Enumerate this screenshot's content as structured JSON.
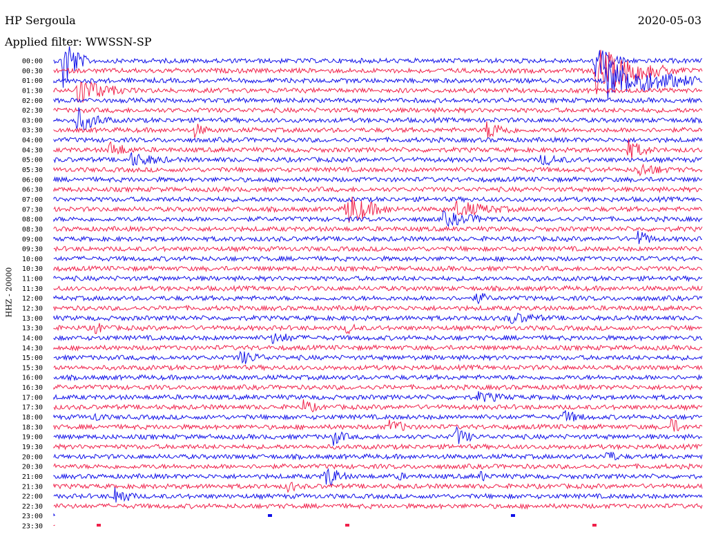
{
  "header": {
    "station": "HP Sergoula",
    "date": "2020-05-03",
    "filter": "Applied filter: WWSSN-SP"
  },
  "chart_data": {
    "type": "line",
    "title": "HP Sergoula",
    "date": "2020-05-03",
    "ylabel": "HHZ - 20000",
    "colors": {
      "even": "#1010e8",
      "odd": "#f0204a"
    },
    "rows": [
      "00:00",
      "00:30",
      "01:00",
      "01:30",
      "02:00",
      "02:30",
      "03:00",
      "03:30",
      "04:00",
      "04:30",
      "05:00",
      "05:30",
      "06:00",
      "06:30",
      "07:00",
      "07:30",
      "08:00",
      "08:30",
      "09:00",
      "09:30",
      "10:00",
      "10:30",
      "11:00",
      "11:30",
      "12:00",
      "12:30",
      "13:00",
      "13:30",
      "14:00",
      "14:30",
      "15:00",
      "15:30",
      "16:00",
      "16:30",
      "17:00",
      "17:30",
      "18:00",
      "18:30",
      "19:00",
      "19:30",
      "20:00",
      "20:30",
      "21:00",
      "21:30",
      "22:00",
      "22:30",
      "23:00",
      "23:30"
    ],
    "events": [
      {
        "row": 0,
        "x_minute": 0.4,
        "amp": 60,
        "dur": 1.5
      },
      {
        "row": 0,
        "x_minute": 25.0,
        "amp": 28,
        "dur": 2.5
      },
      {
        "row": 1,
        "x_minute": 25.0,
        "amp": 38,
        "dur": 6.0
      },
      {
        "row": 2,
        "x_minute": 25.5,
        "amp": 32,
        "dur": 8.0
      },
      {
        "row": 3,
        "x_minute": 1.0,
        "amp": 25,
        "dur": 4.0
      },
      {
        "row": 6,
        "x_minute": 1.0,
        "amp": 22,
        "dur": 3.0
      },
      {
        "row": 7,
        "x_minute": 6.5,
        "amp": 12,
        "dur": 2.0
      },
      {
        "row": 7,
        "x_minute": 20.0,
        "amp": 16,
        "dur": 3.0
      },
      {
        "row": 9,
        "x_minute": 2.5,
        "amp": 14,
        "dur": 3.0
      },
      {
        "row": 9,
        "x_minute": 26.5,
        "amp": 18,
        "dur": 2.5
      },
      {
        "row": 10,
        "x_minute": 3.5,
        "amp": 12,
        "dur": 5.0
      },
      {
        "row": 10,
        "x_minute": 22.5,
        "amp": 10,
        "dur": 4.0
      },
      {
        "row": 11,
        "x_minute": 27.0,
        "amp": 12,
        "dur": 4.0
      },
      {
        "row": 15,
        "x_minute": 13.5,
        "amp": 28,
        "dur": 3.5
      },
      {
        "row": 15,
        "x_minute": 18.5,
        "amp": 14,
        "dur": 6.0
      },
      {
        "row": 16,
        "x_minute": 18.0,
        "amp": 12,
        "dur": 6.0
      },
      {
        "row": 18,
        "x_minute": 27.0,
        "amp": 14,
        "dur": 2.0
      },
      {
        "row": 24,
        "x_minute": 19.5,
        "amp": 12,
        "dur": 2.0
      },
      {
        "row": 26,
        "x_minute": 21.0,
        "amp": 10,
        "dur": 6.0
      },
      {
        "row": 27,
        "x_minute": 1.8,
        "amp": 12,
        "dur": 2.0
      },
      {
        "row": 27,
        "x_minute": 13.5,
        "amp": 10,
        "dur": 2.0
      },
      {
        "row": 28,
        "x_minute": 10.0,
        "amp": 10,
        "dur": 4.5
      },
      {
        "row": 30,
        "x_minute": 8.5,
        "amp": 12,
        "dur": 4.0
      },
      {
        "row": 34,
        "x_minute": 19.5,
        "amp": 10,
        "dur": 5.0
      },
      {
        "row": 35,
        "x_minute": 11.5,
        "amp": 14,
        "dur": 2.0
      },
      {
        "row": 36,
        "x_minute": 1.8,
        "amp": 10,
        "dur": 2.0
      },
      {
        "row": 36,
        "x_minute": 23.5,
        "amp": 12,
        "dur": 3.0
      },
      {
        "row": 37,
        "x_minute": 15.5,
        "amp": 12,
        "dur": 3.0
      },
      {
        "row": 37,
        "x_minute": 28.5,
        "amp": 16,
        "dur": 1.5
      },
      {
        "row": 38,
        "x_minute": 18.5,
        "amp": 18,
        "dur": 2.0
      },
      {
        "row": 38,
        "x_minute": 12.8,
        "amp": 16,
        "dur": 2.0
      },
      {
        "row": 40,
        "x_minute": 25.5,
        "amp": 12,
        "dur": 2.0
      },
      {
        "row": 42,
        "x_minute": 12.5,
        "amp": 22,
        "dur": 2.0
      },
      {
        "row": 42,
        "x_minute": 15.8,
        "amp": 10,
        "dur": 1.5
      },
      {
        "row": 42,
        "x_minute": 19.7,
        "amp": 10,
        "dur": 1.5
      },
      {
        "row": 43,
        "x_minute": 10.8,
        "amp": 12,
        "dur": 1.5
      },
      {
        "row": 44,
        "x_minute": 2.8,
        "amp": 18,
        "dur": 2.0
      }
    ]
  }
}
